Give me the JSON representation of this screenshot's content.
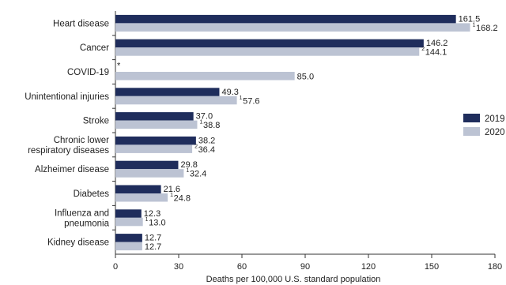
{
  "chart_data": {
    "type": "bar",
    "orientation": "horizontal",
    "categories": [
      "Heart disease",
      "Cancer",
      "COVID-19",
      "Unintentional injuries",
      "Stroke",
      "Chronic lower respiratory diseases",
      "Alzheimer disease",
      "Diabetes",
      "Influenza and pneumonia",
      "Kidney disease"
    ],
    "category_display_lines": [
      [
        "Heart disease"
      ],
      [
        "Cancer"
      ],
      [
        "COVID-19"
      ],
      [
        "Unintentional injuries"
      ],
      [
        "Stroke"
      ],
      [
        "Chronic lower",
        "respiratory diseases"
      ],
      [
        "Alzheimer disease"
      ],
      [
        "Diabetes"
      ],
      [
        "Influenza and",
        "pneumonia"
      ],
      [
        "Kidney disease"
      ]
    ],
    "series": [
      {
        "name": "2019",
        "color": "#1f2d5c",
        "values": [
          161.5,
          146.2,
          null,
          49.3,
          37.0,
          38.2,
          29.8,
          21.6,
          12.3,
          12.7
        ],
        "labels": [
          "161.5",
          "146.2",
          "*",
          "49.3",
          "37.0",
          "38.2",
          "29.8",
          "21.6",
          "12.3",
          "12.7"
        ]
      },
      {
        "name": "2020",
        "color": "#bcc3d3",
        "values": [
          168.2,
          144.1,
          85.0,
          57.6,
          38.8,
          36.4,
          32.4,
          24.8,
          13.0,
          12.7
        ],
        "labels": [
          "168.2",
          "144.1",
          "85.0",
          "57.6",
          "38.8",
          "36.4",
          "32.4",
          "24.8",
          "13.0",
          "12.7"
        ],
        "label_marks": [
          "1",
          "2",
          "",
          "1",
          "1",
          "2",
          "1",
          "1",
          "1",
          ""
        ]
      }
    ],
    "xlim": [
      0,
      180
    ],
    "xticks": [
      0,
      30,
      60,
      90,
      120,
      150,
      180
    ],
    "xlabel": "Deaths per 100,000 U.S. standard population",
    "legend_position": "right"
  }
}
